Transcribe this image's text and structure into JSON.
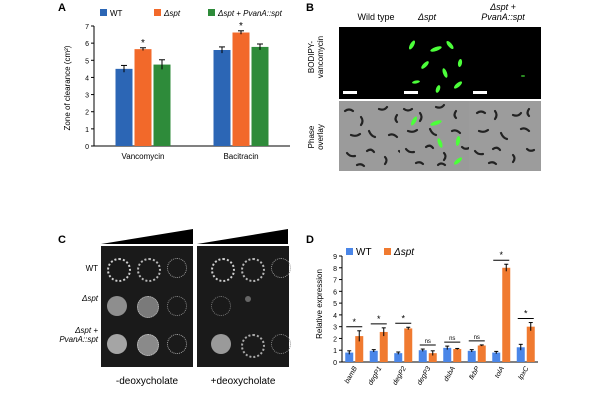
{
  "panels": {
    "a": "A",
    "b": "B",
    "c": "C",
    "d": "D"
  },
  "colors": {
    "wt": "#2C66B5",
    "spt": "#F2692A",
    "comp": "#2E8B3A",
    "d_wt": "#4A86E8",
    "d_spt": "#F07A30",
    "green_cell": "#4CFF3A"
  },
  "panel_b": {
    "col_wt": "Wild type",
    "col_spt": "Δspt",
    "col_comp_1": "Δspt +",
    "col_comp_2": "PvanA::spt",
    "row_1_a": "BODIPY-",
    "row_1_b": "vancomycin",
    "row_2_a": "Phase",
    "row_2_b": "overlay"
  },
  "panel_c": {
    "row_wt": "WT",
    "row_spt": "Δspt",
    "row_comp_1": "Δspt +",
    "row_comp_2": "PvanA::spt",
    "label_minus": "-deoxycholate",
    "label_plus": "+deoxycholate"
  },
  "chart_data": [
    {
      "id": "A",
      "type": "bar",
      "ylabel": "Zone of clearance (cm²)",
      "ylim": [
        0,
        7
      ],
      "yticks": [
        "0",
        "1",
        "2",
        "3",
        "4",
        "5",
        "6",
        "7"
      ],
      "categories": [
        "Vancomycin",
        "Bacitracin"
      ],
      "legend": [
        "WT",
        "Δspt",
        "Δspt + PvanA::spt"
      ],
      "series": [
        {
          "name": "WT",
          "values": [
            4.5,
            5.6
          ],
          "errors": [
            0.2,
            0.18
          ]
        },
        {
          "name": "Δspt",
          "values": [
            5.65,
            6.62
          ],
          "errors": [
            0.08,
            0.1
          ]
        },
        {
          "name": "Δspt + PvanA::spt",
          "values": [
            4.75,
            5.78
          ],
          "errors": [
            0.28,
            0.17
          ]
        }
      ],
      "significance": [
        "*",
        "*"
      ]
    },
    {
      "id": "D",
      "type": "bar",
      "ylabel": "Relative expression",
      "ylim": [
        0,
        9
      ],
      "yticks": [
        "0",
        "1",
        "2",
        "3",
        "4",
        "5",
        "6",
        "7",
        "8",
        "9"
      ],
      "categories": [
        "bamB",
        "degP1",
        "degP2",
        "degP3",
        "dsbA",
        "fkbP",
        "tolA",
        "lpxC"
      ],
      "legend": [
        "WT",
        "Δspt"
      ],
      "series": [
        {
          "name": "WT",
          "values": [
            0.8,
            0.95,
            0.75,
            1.0,
            1.2,
            0.95,
            0.8,
            1.25
          ],
          "errors": [
            0.15,
            0.1,
            0.1,
            0.1,
            0.15,
            0.1,
            0.1,
            0.25
          ]
        },
        {
          "name": "Δspt",
          "values": [
            2.2,
            2.55,
            2.85,
            0.75,
            1.1,
            1.4,
            8.0,
            3.0
          ],
          "errors": [
            0.45,
            0.35,
            0.1,
            0.2,
            0.05,
            0.05,
            0.3,
            0.35
          ]
        }
      ],
      "significance": [
        "*",
        "*",
        "*",
        "ns",
        "ns",
        "ns",
        "*",
        "*"
      ]
    }
  ]
}
